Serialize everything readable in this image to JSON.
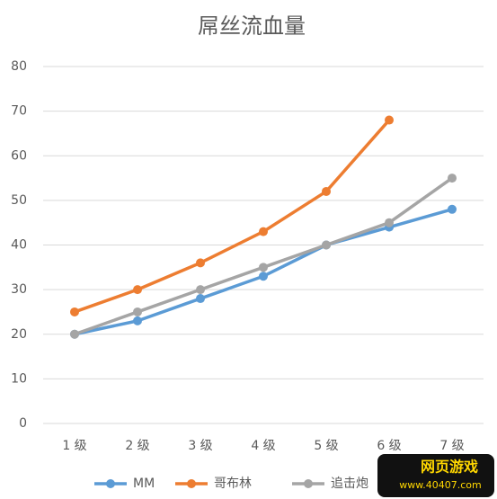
{
  "chart_data": {
    "type": "line",
    "title": "屌丝流血量",
    "categories": [
      "1 级",
      "2 级",
      "3 级",
      "4 级",
      "5 级",
      "6 级",
      "7 级"
    ],
    "series": [
      {
        "name": "MM",
        "color": "#5b9bd5",
        "values": [
          20,
          23,
          28,
          33,
          40,
          44,
          48
        ]
      },
      {
        "name": "哥布林",
        "color": "#ed7d31",
        "values": [
          25,
          30,
          36,
          43,
          52,
          68,
          null
        ]
      },
      {
        "name": "追击炮",
        "color": "#a5a5a5",
        "values": [
          20,
          25,
          30,
          35,
          40,
          45,
          55
        ]
      }
    ],
    "ylim": [
      0,
      80
    ],
    "yticks": [
      0,
      10,
      20,
      30,
      40,
      50,
      60,
      70,
      80
    ],
    "grid": true,
    "legend": "bottom"
  },
  "watermark": {
    "text": "网页游戏",
    "url": "www.40407.com"
  }
}
